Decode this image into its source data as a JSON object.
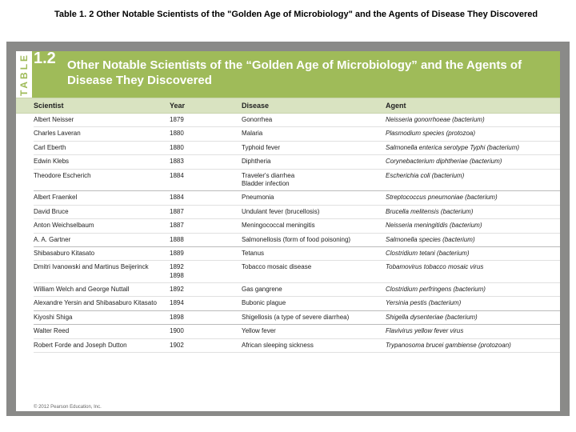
{
  "caption": "Table 1. 2  Other Notable Scientists of the \"Golden Age of Microbiology\" and the Agents of Disease They Discovered",
  "table_number": "1.2",
  "vertical_label": "TABLE",
  "header_title": "Other Notable Scientists of the “Golden Age of Microbiology” and the Agents of Disease They Discovered",
  "columns": {
    "c0": "Scientist",
    "c1": "Year",
    "c2": "Disease",
    "c3": "Agent"
  },
  "rows": [
    {
      "sci": "Albert Neisser",
      "year": "1879",
      "dis": "Gonorrhea",
      "agent": "Neisseria gonorrhoeae (bacterium)",
      "break": false
    },
    {
      "sci": "Charles Laveran",
      "year": "1880",
      "dis": "Malaria",
      "agent": "Plasmodium species (protozoa)",
      "break": false
    },
    {
      "sci": "Carl Eberth",
      "year": "1880",
      "dis": "Typhoid fever",
      "agent": "Salmonella enterica serotype Typhi (bacterium)",
      "break": false
    },
    {
      "sci": "Edwin Klebs",
      "year": "1883",
      "dis": "Diphtheria",
      "agent": "Corynebacterium diphtheriae (bacterium)",
      "break": false
    },
    {
      "sci": "Theodore Escherich",
      "year": "1884",
      "dis": "Traveler's diarrhea\nBladder infection",
      "agent": "Escherichia coli (bacterium)",
      "break": true
    },
    {
      "sci": "Albert Fraenkel",
      "year": "1884",
      "dis": "Pneumonia",
      "agent": "Streptococcus pneumoniae (bacterium)",
      "break": false
    },
    {
      "sci": "David Bruce",
      "year": "1887",
      "dis": "Undulant fever (brucellosis)",
      "agent": "Brucella melitensis (bacterium)",
      "break": false
    },
    {
      "sci": "Anton Weichselbaum",
      "year": "1887",
      "dis": "Meningococcal meningitis",
      "agent": "Neisseria meningitidis (bacterium)",
      "break": false
    },
    {
      "sci": "A. A. Gartner",
      "year": "1888",
      "dis": "Salmonellosis (form of food poisoning)",
      "agent": "Salmonella species (bacterium)",
      "break": true
    },
    {
      "sci": "Shibasaburo Kitasato",
      "year": "1889",
      "dis": "Tetanus",
      "agent": "Clostridium tetani (bacterium)",
      "break": false
    },
    {
      "sci": "Dmitri Ivanowski and Martinus Beijerinck",
      "year": "1892\n1898",
      "dis": "Tobacco mosaic disease",
      "agent": "Tobamovirus tobacco mosaic virus",
      "break": false
    },
    {
      "sci": "William Welch and George Nuttall",
      "year": "1892",
      "dis": "Gas gangrene",
      "agent": "Clostridium perfringens (bacterium)",
      "break": false
    },
    {
      "sci": "Alexandre Yersin and Shibasaburo Kitasato",
      "year": "1894",
      "dis": "Bubonic plague",
      "agent": "Yersinia pestis (bacterium)",
      "break": true
    },
    {
      "sci": "Kiyoshi Shiga",
      "year": "1898",
      "dis": "Shigellosis (a type of severe diarrhea)",
      "agent": "Shigella dysenteriae (bacterium)",
      "break": true
    },
    {
      "sci": "Walter Reed",
      "year": "1900",
      "dis": "Yellow fever",
      "agent": "Flavivirus yellow fever virus",
      "break": false
    },
    {
      "sci": "Robert Forde and Joseph Dutton",
      "year": "1902",
      "dis": "African sleeping sickness",
      "agent": "Trypanosoma brucei gambiense (protozoan)",
      "break": false
    }
  ],
  "copyright": "© 2012 Pearson Education, Inc.",
  "colors": {
    "header_bg": "#9fbb59",
    "subhead_bg": "#d9e3c1",
    "frame_bg": "#8a8a88",
    "page_bg": "#ffffff"
  }
}
